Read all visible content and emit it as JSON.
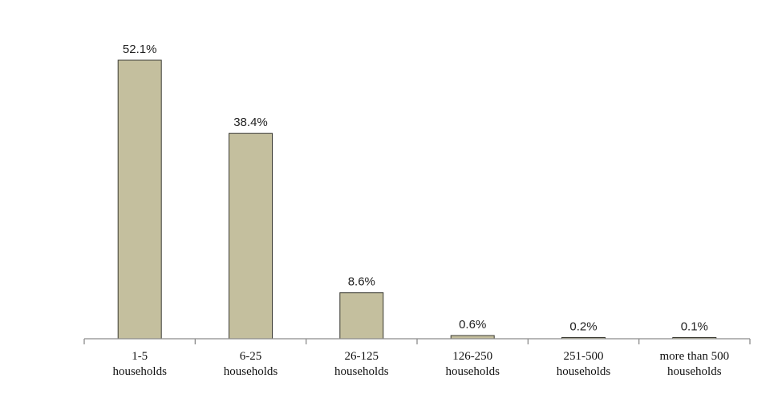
{
  "chart_data": {
    "type": "bar",
    "categories": [
      [
        "1-5",
        "households"
      ],
      [
        "6-25",
        "households"
      ],
      [
        "26-125",
        "households"
      ],
      [
        "126-250",
        "households"
      ],
      [
        "251-500",
        "households"
      ],
      [
        "more than 500",
        "households"
      ]
    ],
    "values": [
      52.1,
      38.4,
      8.6,
      0.6,
      0.2,
      0.1
    ],
    "value_labels": [
      "52.1%",
      "38.4%",
      "8.6%",
      "0.6%",
      "0.2%",
      "0.1%"
    ],
    "title": "",
    "xlabel": "",
    "ylabel": "",
    "ylim": [
      0,
      52.1
    ],
    "grid": false,
    "colors": {
      "bar_fill": "#c4bf9e",
      "bar_stroke": "#3b3b33",
      "axis": "#8c8c8c"
    }
  }
}
